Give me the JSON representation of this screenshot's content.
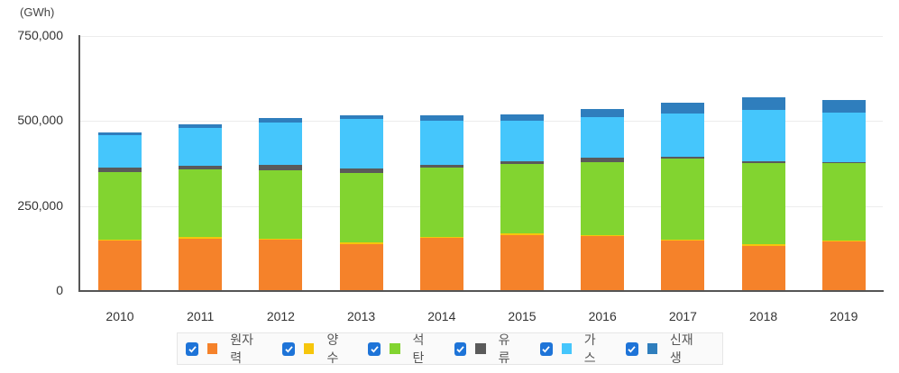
{
  "chart_data": {
    "type": "bar",
    "stacked": true,
    "title": "",
    "unit_label": "(GWh)",
    "xlabel": "",
    "ylabel": "(GWh)",
    "ylim": [
      0,
      750000
    ],
    "y_ticks": [
      "0",
      "250,000",
      "500,000",
      "750,000"
    ],
    "grid": true,
    "legend_position": "bottom",
    "categories": [
      "2010",
      "2011",
      "2012",
      "2013",
      "2014",
      "2015",
      "2016",
      "2017",
      "2018",
      "2019"
    ],
    "series": [
      {
        "name": "원자력",
        "color": "#f5822a",
        "values": [
          148596,
          154723,
          150327,
          138784,
          156407,
          164762,
          161995,
          148427,
          133505,
          145910
        ]
      },
      {
        "name": "양수",
        "color": "#f6c60c",
        "values": [
          2958,
          3061,
          3737,
          4006,
          3713,
          3650,
          3601,
          3658,
          3982,
          3458
        ]
      },
      {
        "name": "석탄",
        "color": "#82d430",
        "values": [
          197917,
          200124,
          202191,
          205061,
          203446,
          204230,
          213803,
          238799,
          238967,
          227384
        ]
      },
      {
        "name": "유류",
        "color": "#5a5a5a",
        "values": [
          12664,
          10079,
          13996,
          11954,
          7986,
          10028,
          12111,
          4571,
          3920,
          3316
        ]
      },
      {
        "name": "가스",
        "color": "#45c6fc",
        "values": [
          96734,
          111030,
          126151,
          145147,
          130033,
          118730,
          121018,
          126340,
          152925,
          144355
        ]
      },
      {
        "name": "신재생",
        "color": "#2f7ebd",
        "values": [
          6788,
          11312,
          12003,
          12360,
          16093,
          19088,
          23330,
          30817,
          35598,
          36392
        ]
      }
    ]
  },
  "legend": {
    "items": [
      {
        "label": "원자력",
        "color": "#f5822a",
        "checked": true
      },
      {
        "label": "양수",
        "color": "#f6c60c",
        "checked": true
      },
      {
        "label": "석탄",
        "color": "#82d430",
        "checked": true
      },
      {
        "label": "유류",
        "color": "#5a5a5a",
        "checked": true
      },
      {
        "label": "가스",
        "color": "#45c6fc",
        "checked": true
      },
      {
        "label": "신재생",
        "color": "#2f7ebd",
        "checked": true
      }
    ]
  }
}
